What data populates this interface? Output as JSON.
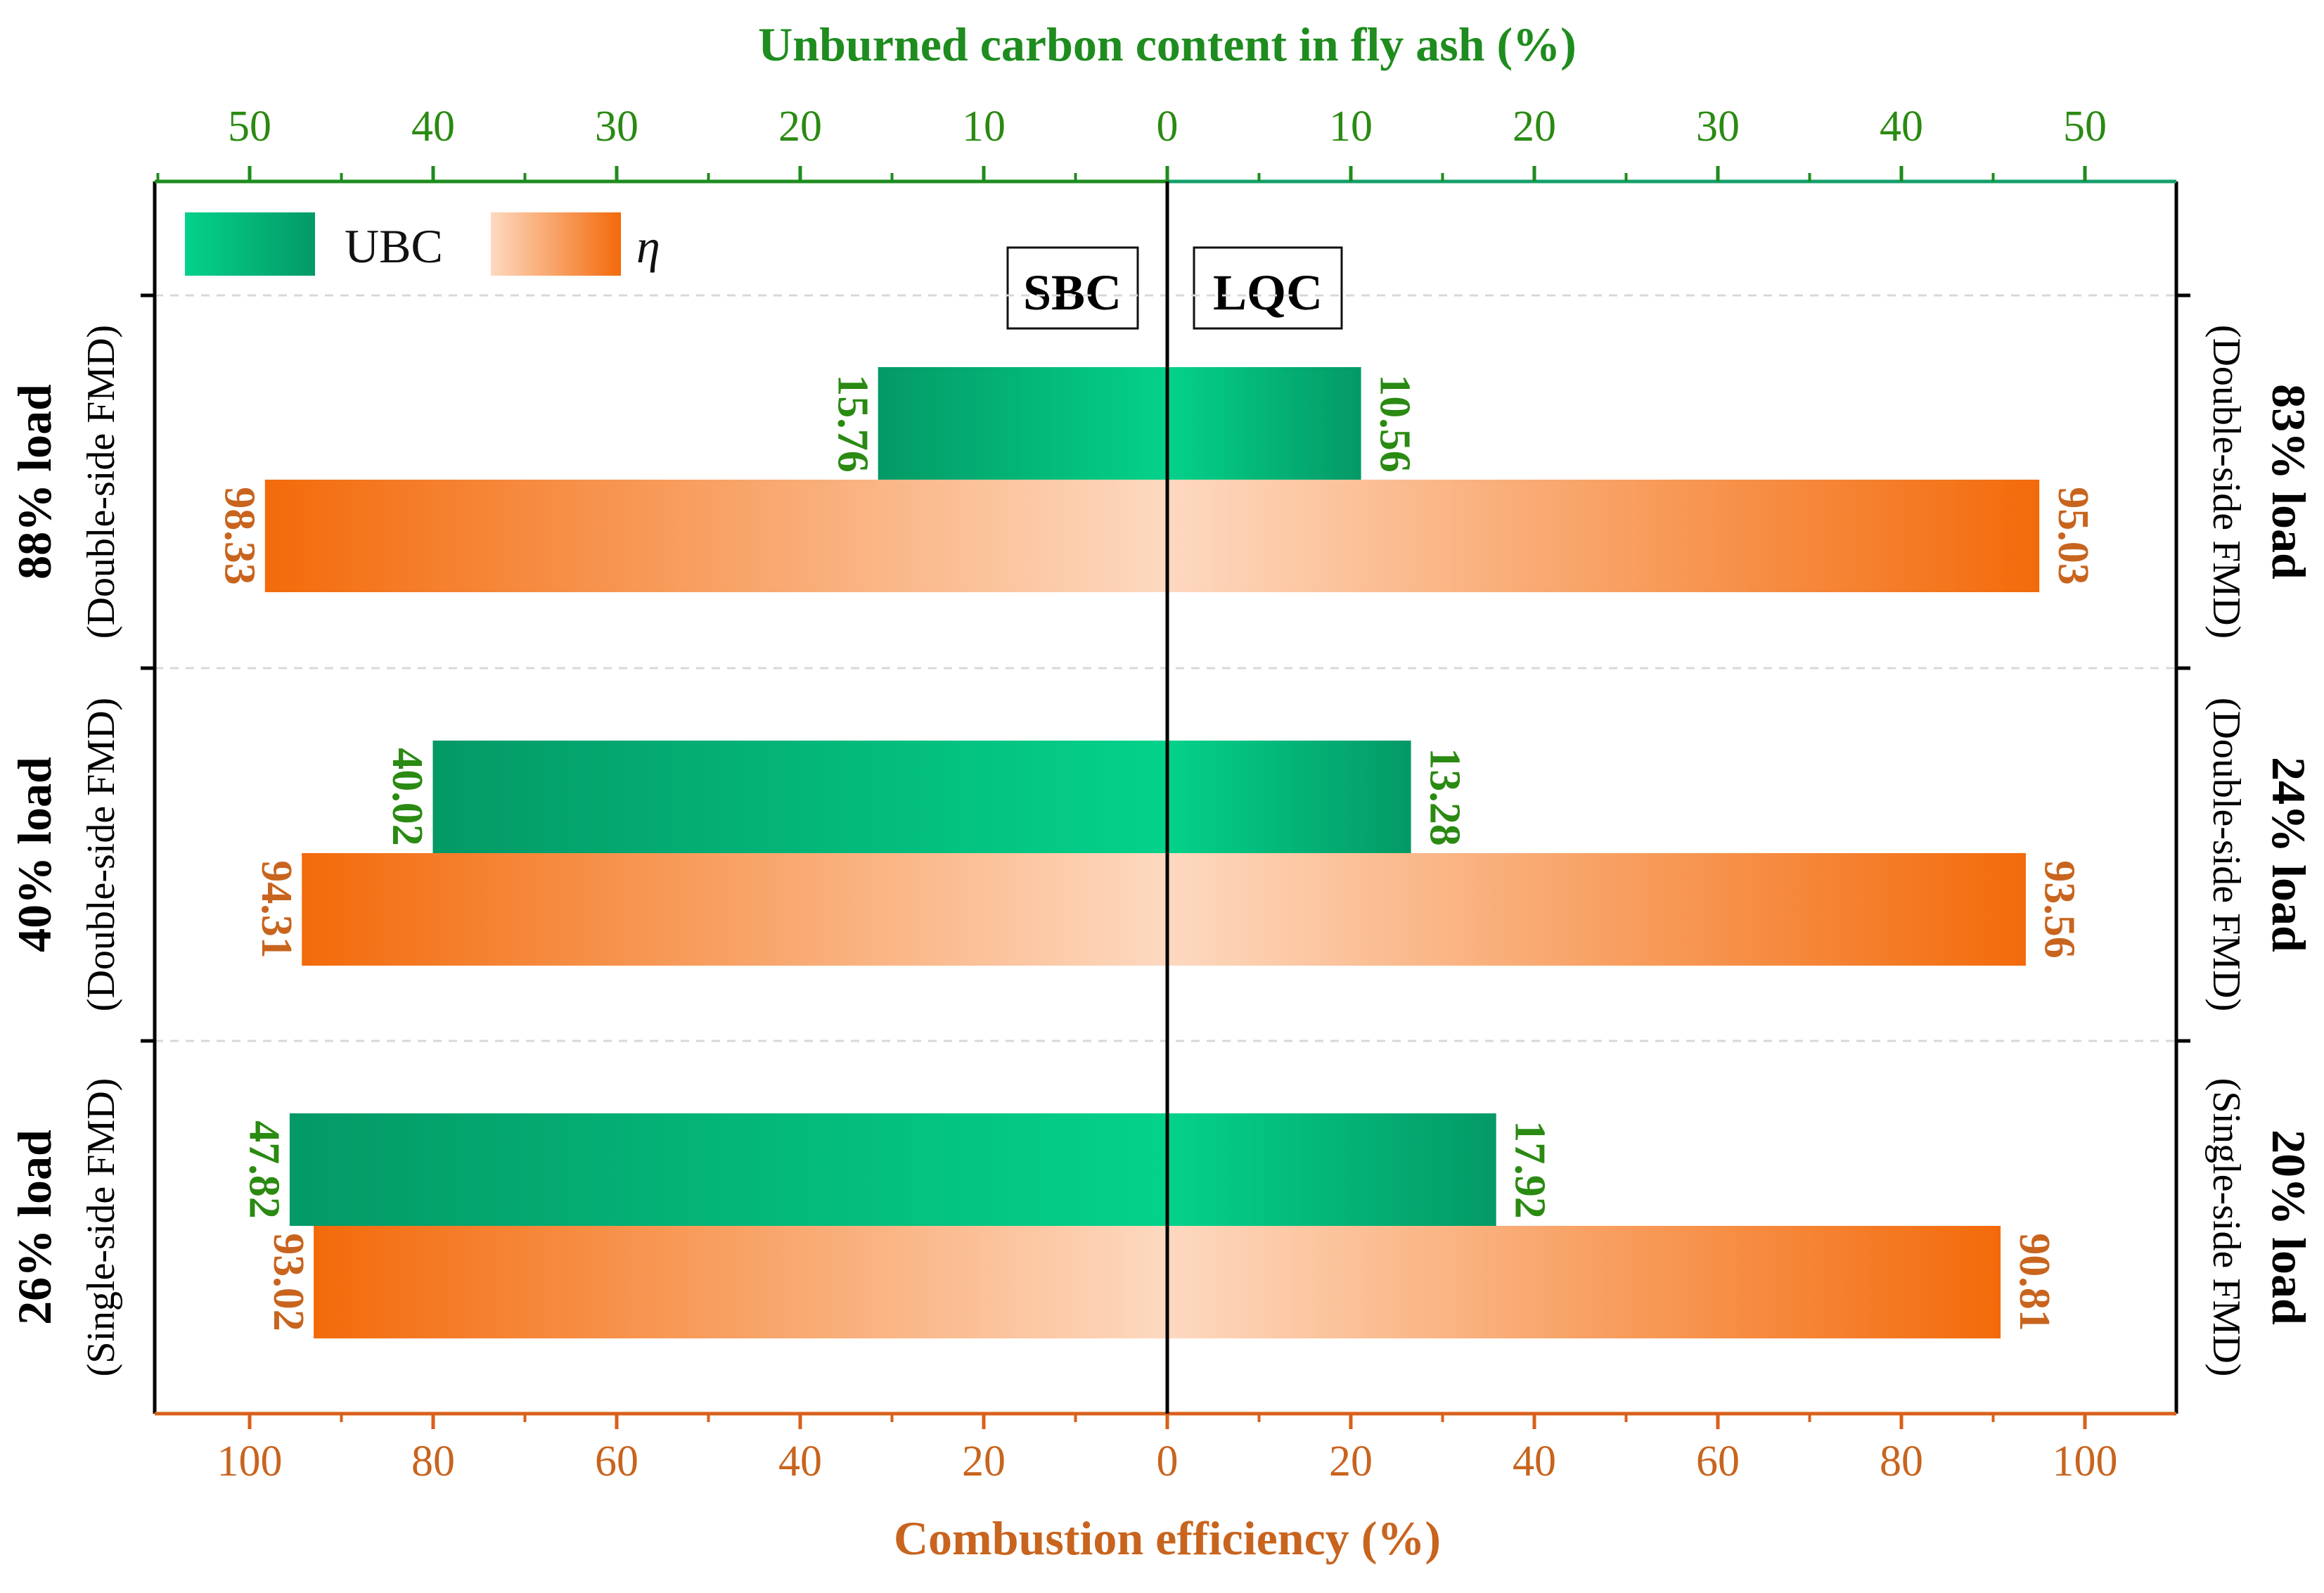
{
  "chart_data": {
    "type": "bar",
    "orientation": "horizontal-butterfly",
    "top_axis": {
      "label": "Unburned carbon content in fly ash (%)",
      "ticks": [
        "50",
        "40",
        "30",
        "20",
        "10",
        "0",
        "10",
        "20",
        "30",
        "40",
        "50"
      ],
      "range": [
        0,
        50
      ]
    },
    "bottom_axis": {
      "label": "Combustion efficiency (%)",
      "ticks": [
        "100",
        "80",
        "60",
        "40",
        "20",
        "0",
        "20",
        "40",
        "60",
        "80",
        "100"
      ],
      "range": [
        0,
        100
      ]
    },
    "legend": [
      {
        "name": "UBC",
        "key": "ubc"
      },
      {
        "name": "η",
        "key": "eta"
      }
    ],
    "boiler_labels": {
      "left": "SBC",
      "right": "LQC"
    },
    "groups": [
      {
        "left_load": "88% load",
        "left_mode": "(Double-side FMD)",
        "right_load": "83% load",
        "right_mode": "(Double-side FMD)",
        "left_ubc": 15.76,
        "left_ubc_label": "15.76",
        "right_ubc": 10.56,
        "right_ubc_label": "10.56",
        "left_eta": 98.33,
        "left_eta_label": "98.33",
        "right_eta": 95.03,
        "right_eta_label": "95.03"
      },
      {
        "left_load": "40% load",
        "left_mode": "(Double-side FMD)",
        "right_load": "24% load",
        "right_mode": "(Double-side FMD)",
        "left_ubc": 40.02,
        "left_ubc_label": "40.02",
        "right_ubc": 13.28,
        "right_ubc_label": "13.28",
        "left_eta": 94.31,
        "left_eta_label": "94.31",
        "right_eta": 93.56,
        "right_eta_label": "93.56"
      },
      {
        "left_load": "26% load",
        "left_mode": "(Single-side FMD)",
        "right_load": "20% load",
        "right_mode": "(Single-side FMD)",
        "left_ubc": 47.82,
        "left_ubc_label": "47.82",
        "right_ubc": 17.92,
        "right_ubc_label": "17.92",
        "left_eta": 93.02,
        "left_eta_label": "93.02",
        "right_eta": 90.81,
        "right_eta_label": "90.81"
      }
    ]
  },
  "colors": {
    "green_axis": "#1e8c1e",
    "green_text": "#2a8a12",
    "orange_axis": "#d9601a",
    "orange_text": "#c8641e",
    "ubc_light": "#04d28a",
    "ubc_dark": "#049966",
    "eta_light": "#fdd9c0",
    "eta_dark": "#f36a0a",
    "frame": "#000000",
    "grid": "#d8d8d8"
  }
}
